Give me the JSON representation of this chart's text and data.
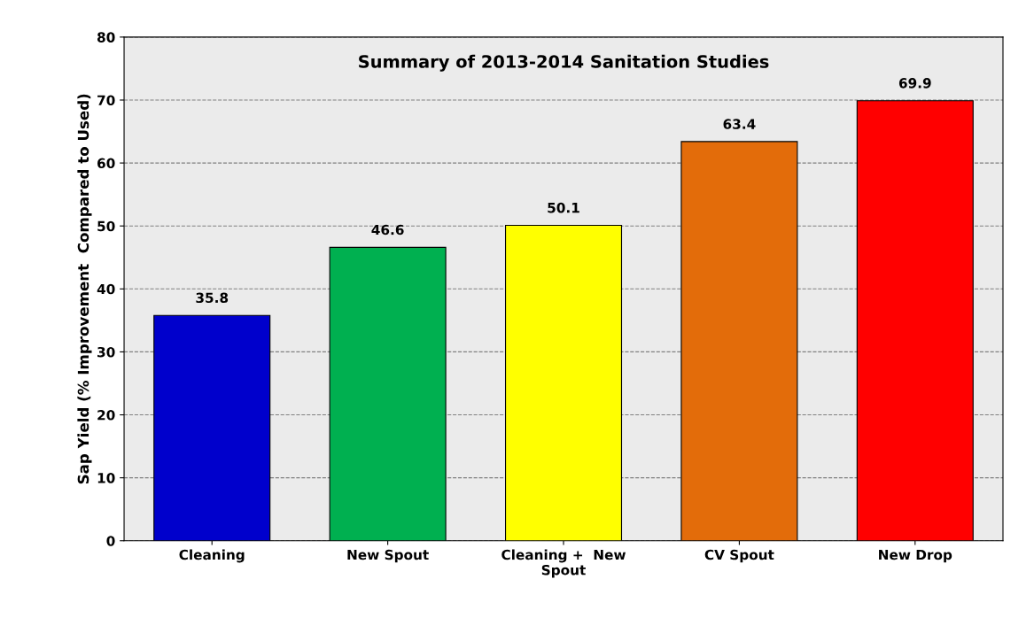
{
  "chart_data": {
    "type": "bar",
    "title": "Summary of 2013-2014 Sanitation Studies",
    "ylabel": "Sap Yield (% Improvement  Compared to Used)",
    "categories": [
      "Cleaning",
      "New Spout",
      "Cleaning +  New\nSpout",
      "CV Spout",
      "New Drop"
    ],
    "values": [
      35.8,
      46.6,
      50.1,
      63.4,
      69.9
    ],
    "colors": [
      "#0000cc",
      "#00b050",
      "#ffff00",
      "#e36c0a",
      "#ff0000"
    ],
    "ylim": [
      0,
      80
    ],
    "yticks": [
      0,
      10,
      20,
      30,
      40,
      50,
      60,
      70,
      80
    ],
    "grid": "y",
    "data_labels": true,
    "legend": false
  }
}
